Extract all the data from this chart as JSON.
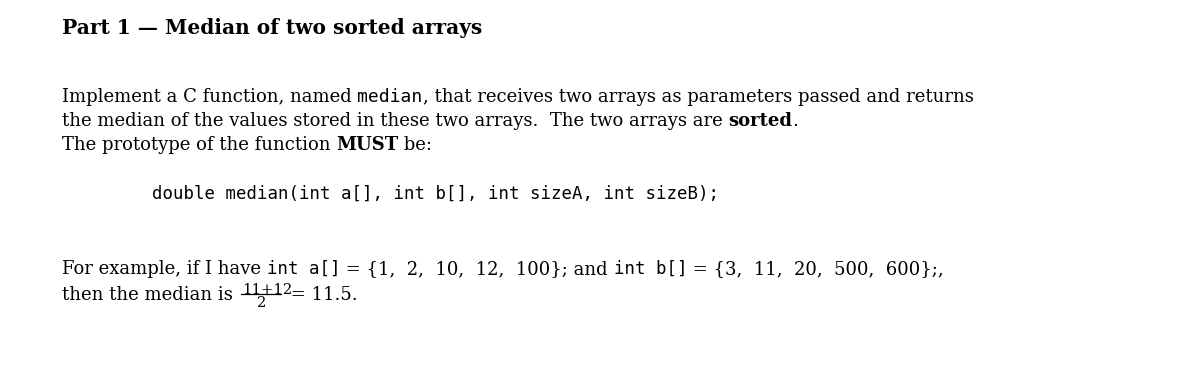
{
  "bg_color": "#ffffff",
  "title": "Part 1 — Median of two sorted arrays",
  "body_line1_pre": "Implement a C function, named ",
  "body_median": "median",
  "body_line1_post": ", that receives two arrays as parameters passed and returns",
  "body_line2_pre": "the median of the values stored in these two arrays.  The two arrays are ",
  "body_sorted": "sorted",
  "body_line2_post": ".",
  "body_line3_pre": "The prototype of the function ",
  "body_must": "MUST",
  "body_line3_post": " be:",
  "code_line": "double median(int a[], int b[], int sizeA, int sizeB);",
  "example_pre": "For example, if I have ",
  "example_a_code": "int a[]",
  "example_mid1": " = {1,  2,  10,  12,  100}; and ",
  "example_b_code": "int b[]",
  "example_mid2": " = {3,  11,  20,  500,  600};,",
  "median_line_pre": "then the median is ",
  "frac_num": "11+12",
  "frac_den": "2",
  "median_val": " = 11.5.",
  "title_fontsize": 14.5,
  "body_fontsize": 13.0,
  "code_fontsize": 12.5,
  "fig_width": 12.0,
  "fig_height": 3.73,
  "dpi": 100
}
